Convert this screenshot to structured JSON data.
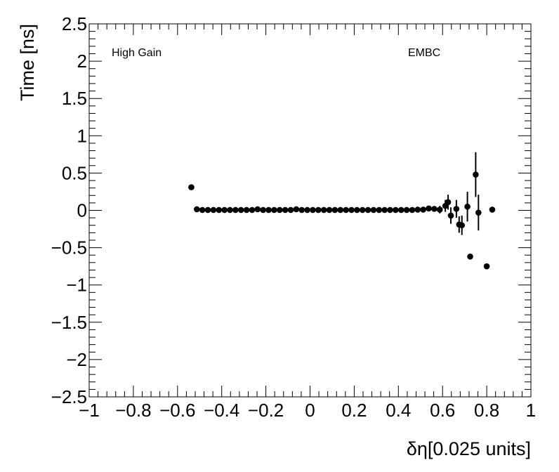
{
  "chart_data": {
    "type": "scatter",
    "title": "",
    "xlabel": "δη[0.025 units]",
    "ylabel": "Time [ns]",
    "xlim": [
      -1,
      1
    ],
    "ylim": [
      -2.5,
      2.5
    ],
    "xticks": [
      -1,
      -0.8,
      -0.6,
      -0.4,
      -0.2,
      0,
      0.2,
      0.4,
      0.6,
      0.8,
      1
    ],
    "yticks": [
      -2.5,
      -2,
      -1.5,
      -1,
      -0.5,
      0,
      0.5,
      1,
      1.5,
      2,
      2.5
    ],
    "xtick_labels": [
      "−1",
      "−0.8",
      "−0.6",
      "−0.4",
      "−0.2",
      "0",
      "0.2",
      "0.4",
      "0.6",
      "0.8",
      "1"
    ],
    "ytick_labels": [
      "−2.5",
      "−2",
      "−1.5",
      "−1",
      "−0.5",
      "0",
      "0.5",
      "1",
      "1.5",
      "2",
      "2.5"
    ],
    "grid": false,
    "annotations": [
      {
        "text": "High Gain",
        "position": "top-left"
      },
      {
        "text": "EMBC",
        "position": "top-right"
      }
    ],
    "series": [
      {
        "points": [
          {
            "x": -0.5375,
            "y": 0.31,
            "err": 0
          },
          {
            "x": -0.5125,
            "y": 0.015,
            "err": 0
          },
          {
            "x": -0.4875,
            "y": 0.005,
            "err": 0
          },
          {
            "x": -0.4625,
            "y": 0.005,
            "err": 0
          },
          {
            "x": -0.4375,
            "y": 0.005,
            "err": 0
          },
          {
            "x": -0.4125,
            "y": 0.005,
            "err": 0
          },
          {
            "x": -0.3875,
            "y": 0.005,
            "err": 0
          },
          {
            "x": -0.3625,
            "y": 0.005,
            "err": 0
          },
          {
            "x": -0.3375,
            "y": 0.005,
            "err": 0
          },
          {
            "x": -0.3125,
            "y": 0.005,
            "err": 0
          },
          {
            "x": -0.2875,
            "y": 0.005,
            "err": 0
          },
          {
            "x": -0.2625,
            "y": 0.005,
            "err": 0
          },
          {
            "x": -0.2375,
            "y": 0.015,
            "err": 0
          },
          {
            "x": -0.2125,
            "y": 0.005,
            "err": 0
          },
          {
            "x": -0.1875,
            "y": 0.005,
            "err": 0
          },
          {
            "x": -0.1625,
            "y": 0.005,
            "err": 0
          },
          {
            "x": -0.1375,
            "y": 0.005,
            "err": 0
          },
          {
            "x": -0.1125,
            "y": 0.005,
            "err": 0
          },
          {
            "x": -0.0875,
            "y": 0.005,
            "err": 0
          },
          {
            "x": -0.0625,
            "y": 0.015,
            "err": 0
          },
          {
            "x": -0.0375,
            "y": 0.005,
            "err": 0
          },
          {
            "x": -0.0125,
            "y": 0.005,
            "err": 0
          },
          {
            "x": 0.0125,
            "y": 0.005,
            "err": 0
          },
          {
            "x": 0.0375,
            "y": 0.005,
            "err": 0
          },
          {
            "x": 0.0625,
            "y": 0.005,
            "err": 0
          },
          {
            "x": 0.0875,
            "y": 0.005,
            "err": 0
          },
          {
            "x": 0.1125,
            "y": 0.005,
            "err": 0
          },
          {
            "x": 0.1375,
            "y": 0.005,
            "err": 0
          },
          {
            "x": 0.1625,
            "y": 0.005,
            "err": 0
          },
          {
            "x": 0.1875,
            "y": 0.005,
            "err": 0
          },
          {
            "x": 0.2125,
            "y": 0.005,
            "err": 0
          },
          {
            "x": 0.2375,
            "y": 0.005,
            "err": 0
          },
          {
            "x": 0.2625,
            "y": 0.005,
            "err": 0
          },
          {
            "x": 0.2875,
            "y": 0.005,
            "err": 0
          },
          {
            "x": 0.3125,
            "y": 0.005,
            "err": 0
          },
          {
            "x": 0.3375,
            "y": 0.005,
            "err": 0
          },
          {
            "x": 0.3625,
            "y": 0.005,
            "err": 0
          },
          {
            "x": 0.3875,
            "y": 0.005,
            "err": 0
          },
          {
            "x": 0.4125,
            "y": 0.005,
            "err": 0
          },
          {
            "x": 0.4375,
            "y": 0.005,
            "err": 0
          },
          {
            "x": 0.4625,
            "y": 0.005,
            "err": 0
          },
          {
            "x": 0.4875,
            "y": 0.01,
            "err": 0
          },
          {
            "x": 0.5125,
            "y": 0.01,
            "err": 0
          },
          {
            "x": 0.5375,
            "y": 0.025,
            "err": 0
          },
          {
            "x": 0.5625,
            "y": 0.02,
            "err": 0
          },
          {
            "x": 0.5875,
            "y": 0.01,
            "err": 0.05
          },
          {
            "x": 0.6125,
            "y": 0.06,
            "err": 0.08
          },
          {
            "x": 0.625,
            "y": 0.11,
            "err": 0.1
          },
          {
            "x": 0.6375,
            "y": -0.07,
            "err": 0.11
          },
          {
            "x": 0.6625,
            "y": 0.02,
            "err": 0.12
          },
          {
            "x": 0.675,
            "y": -0.19,
            "err": 0.11
          },
          {
            "x": 0.6875,
            "y": -0.2,
            "err": 0.13
          },
          {
            "x": 0.7125,
            "y": 0.05,
            "err": 0.2
          },
          {
            "x": 0.725,
            "y": -0.62,
            "err": 0
          },
          {
            "x": 0.75,
            "y": 0.48,
            "err": 0.3
          },
          {
            "x": 0.7625,
            "y": -0.03,
            "err": 0.24
          },
          {
            "x": 0.8,
            "y": -0.75,
            "err": 0
          },
          {
            "x": 0.825,
            "y": 0.01,
            "err": 0
          }
        ]
      }
    ]
  }
}
